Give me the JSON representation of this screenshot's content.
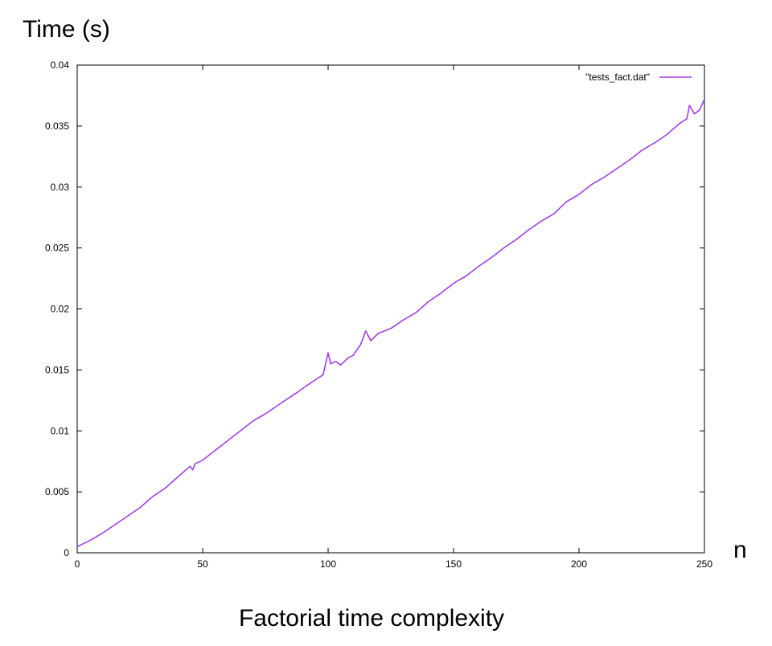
{
  "chart_data": {
    "type": "line",
    "title": "",
    "caption": "Factorial time complexity",
    "ylabel": "Time (s)",
    "xlabel": "n",
    "xlim": [
      0,
      250
    ],
    "ylim": [
      0,
      0.04
    ],
    "x_ticks": [
      0,
      50,
      100,
      150,
      200,
      250
    ],
    "x_tick_labels": [
      "0",
      "50",
      "100",
      "150",
      "200",
      "250"
    ],
    "y_ticks": [
      0,
      0.005,
      0.01,
      0.015,
      0.02,
      0.025,
      0.03,
      0.035,
      0.04
    ],
    "y_tick_labels": [
      "0",
      "0.005",
      "0.01",
      "0.015",
      "0.02",
      "0.025",
      "0.03",
      "0.035",
      "0.04"
    ],
    "grid": false,
    "legend_position": "top-right",
    "series": [
      {
        "name": "\"tests_fact.dat\"",
        "color": "#a040e8",
        "x": [
          0,
          5,
          10,
          15,
          20,
          25,
          30,
          35,
          40,
          45,
          46,
          47,
          50,
          55,
          60,
          65,
          70,
          75,
          80,
          85,
          88,
          90,
          95,
          98,
          100,
          101,
          103,
          105,
          108,
          110,
          113,
          115,
          117,
          120,
          125,
          130,
          135,
          140,
          145,
          150,
          155,
          160,
          165,
          170,
          175,
          180,
          185,
          190,
          195,
          200,
          205,
          210,
          215,
          220,
          225,
          230,
          235,
          240,
          243,
          244,
          246,
          248,
          250
        ],
        "values": [
          0.0005,
          0.001,
          0.0016,
          0.0023,
          0.003,
          0.0037,
          0.0046,
          0.0053,
          0.0062,
          0.0071,
          0.0068,
          0.0073,
          0.0076,
          0.0084,
          0.0092,
          0.01,
          0.0108,
          0.0114,
          0.0121,
          0.0128,
          0.0132,
          0.0135,
          0.0142,
          0.0146,
          0.0164,
          0.0155,
          0.0157,
          0.0154,
          0.016,
          0.0162,
          0.0171,
          0.0182,
          0.0174,
          0.018,
          0.0184,
          0.0191,
          0.0197,
          0.0206,
          0.0213,
          0.0221,
          0.0227,
          0.0235,
          0.0242,
          0.025,
          0.0257,
          0.0265,
          0.0272,
          0.0278,
          0.0288,
          0.0294,
          0.0302,
          0.0308,
          0.0315,
          0.0322,
          0.033,
          0.0336,
          0.0343,
          0.0352,
          0.0356,
          0.0367,
          0.036,
          0.0363,
          0.0372
        ]
      }
    ]
  }
}
